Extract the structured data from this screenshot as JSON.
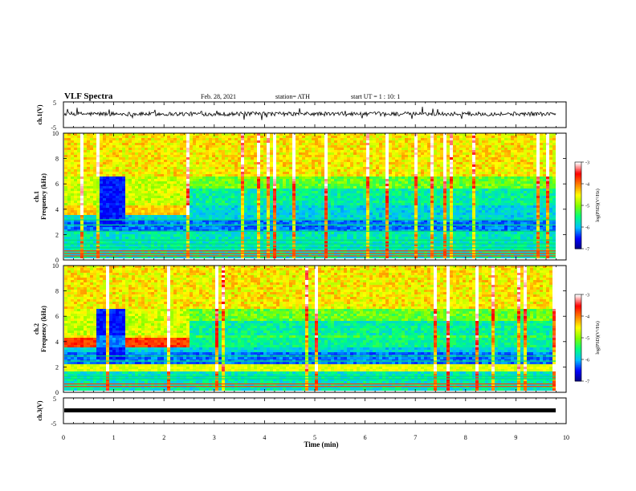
{
  "header": {
    "title": "VLF Spectra",
    "date": "Feb. 28, 2021",
    "station": "station= ATH",
    "start": "start  UT =   1 : 10: 1"
  },
  "chart_data": [
    {
      "type": "line",
      "id": "ch1_waveform",
      "ylabel": "ch.1(V)",
      "ylim": [
        -5,
        5
      ],
      "yticks": [
        "5",
        "-5"
      ],
      "xlim": [
        0,
        10
      ],
      "description_values": "noisy broadband signal centred near 0 V with impulsive spikes"
    },
    {
      "type": "heatmap",
      "id": "ch1_spectrogram",
      "ylabel": "ch.1\nFrequency (kHz)",
      "ylabel_line1": "ch.1",
      "ylabel_line2": "Frequency (kHz)",
      "ylim": [
        0,
        10
      ],
      "yticks": [
        "0",
        "2",
        "4",
        "6",
        "8",
        "10"
      ],
      "xlim": [
        0,
        10
      ],
      "colorbar": {
        "label": "log(PSD)(V²/Hz)",
        "range": [
          -7,
          -3
        ],
        "ticks": [
          "-3",
          "-4",
          "-5",
          "-6",
          "-7"
        ],
        "colors": [
          "#00007f",
          "#0000ff",
          "#00bfff",
          "#00ff7f",
          "#7fff00",
          "#ffff00",
          "#ff7f00",
          "#ff0000",
          "#ffffff"
        ]
      }
    },
    {
      "type": "heatmap",
      "id": "ch2_spectrogram",
      "ylabel_line1": "ch.2",
      "ylabel_line2": "Frequency (kHz)",
      "ylim": [
        0,
        10
      ],
      "yticks": [
        "0",
        "2",
        "4",
        "6",
        "8",
        "10"
      ],
      "xlim": [
        0,
        10
      ],
      "colorbar": {
        "label": "log(PSD)(V²/Hz)",
        "range": [
          -7,
          -3
        ],
        "ticks": [
          "-3",
          "-4",
          "-5",
          "-6",
          "-7"
        ]
      }
    },
    {
      "type": "line",
      "id": "ch3_waveform",
      "ylabel": "ch.3(V)",
      "ylim": [
        -5,
        5
      ],
      "yticks": [
        "5",
        "-5"
      ],
      "xlim": [
        0,
        10
      ],
      "values_note": "constant near -1 V"
    }
  ],
  "xaxis": {
    "label": "Time (min)",
    "ticks": [
      "0",
      "1",
      "2",
      "3",
      "4",
      "5",
      "6",
      "7",
      "8",
      "9",
      "10"
    ]
  }
}
